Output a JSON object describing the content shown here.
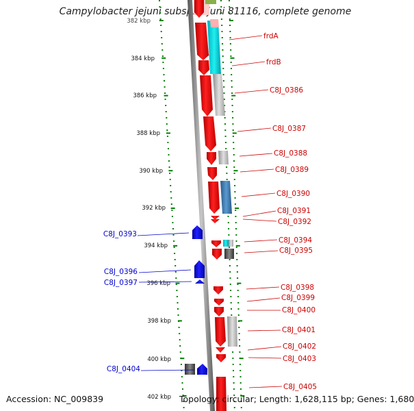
{
  "title": "Campylobacter jejuni subsp. jejuni 81116, complete genome",
  "accession": "Accession: NC_009839",
  "footer": "Topology: circular; Length: 1,628,115 bp; Genes: 1,680",
  "colors": {
    "forward_cds": "#ff0000",
    "reverse_cds": "#0000ff",
    "ruler_dots": "#008000",
    "backbone": "#8a8a8a",
    "label_forward": "#cc0000",
    "label_reverse": "#0000cc",
    "cog_cyan": "#00cccc",
    "cog_gray": "#b0b0b0",
    "cog_steelblue": "#4682b4",
    "cog_dark": "#555555",
    "cog_olive": "#8ab04a"
  },
  "ruler_ticks": [
    {
      "label": "382 kbp"
    },
    {
      "label": "384 kbp"
    },
    {
      "label": "386 kbp"
    },
    {
      "label": "388 kbp"
    },
    {
      "label": "390 kbp"
    },
    {
      "label": "392 kbp"
    },
    {
      "label": "394 kbp"
    },
    {
      "label": "396 kbp"
    },
    {
      "label": "398 kbp"
    },
    {
      "label": "400 kbp"
    },
    {
      "label": "402 kbp"
    }
  ],
  "forward_genes": [
    {
      "name": "frdA"
    },
    {
      "name": "frdB"
    },
    {
      "name": "C8J_0386"
    },
    {
      "name": "C8J_0387"
    },
    {
      "name": "C8J_0388"
    },
    {
      "name": "C8J_0389"
    },
    {
      "name": "C8J_0390"
    },
    {
      "name": "C8J_0391"
    },
    {
      "name": "C8J_0392"
    },
    {
      "name": "C8J_0394"
    },
    {
      "name": "C8J_0395"
    },
    {
      "name": "C8J_0398"
    },
    {
      "name": "C8J_0399"
    },
    {
      "name": "C8J_0400"
    },
    {
      "name": "C8J_0401"
    },
    {
      "name": "C8J_0402"
    },
    {
      "name": "C8J_0403"
    },
    {
      "name": "C8J_0405"
    }
  ],
  "reverse_genes": [
    {
      "name": "C8J_0393"
    },
    {
      "name": "C8J_0396"
    },
    {
      "name": "C8J_0397"
    },
    {
      "name": "C8J_0404"
    }
  ]
}
